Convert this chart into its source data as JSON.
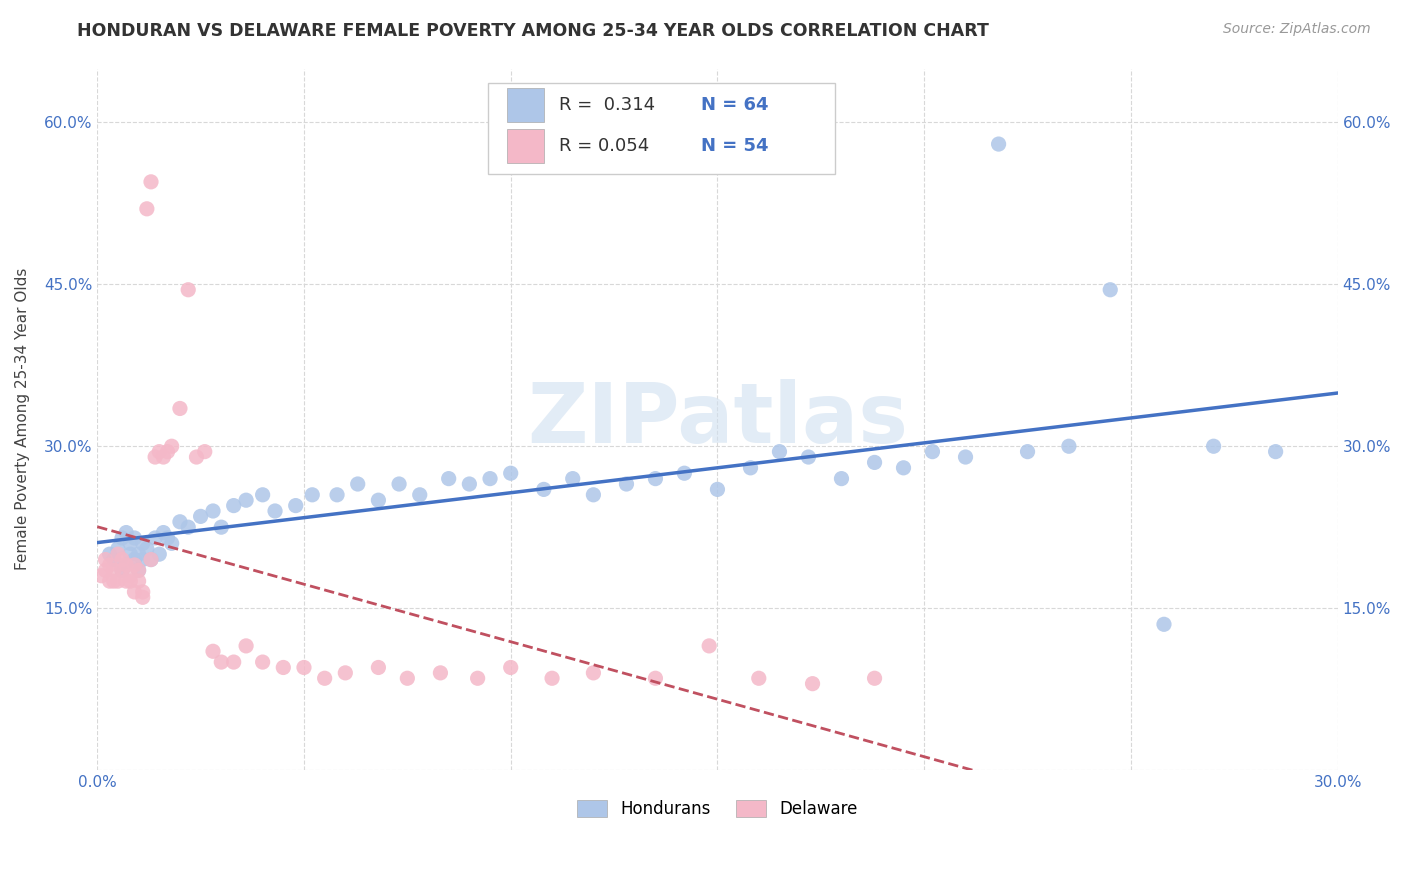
{
  "title": "HONDURAN VS DELAWARE FEMALE POVERTY AMONG 25-34 YEAR OLDS CORRELATION CHART",
  "source": "Source: ZipAtlas.com",
  "ylabel": "Female Poverty Among 25-34 Year Olds",
  "xlim": [
    0.0,
    0.3
  ],
  "ylim": [
    0.0,
    0.65
  ],
  "xticks": [
    0.0,
    0.05,
    0.1,
    0.15,
    0.2,
    0.25,
    0.3
  ],
  "yticks": [
    0.0,
    0.15,
    0.3,
    0.45,
    0.6
  ],
  "hondurans_color": "#aec6e8",
  "delaware_color": "#f4b8c8",
  "trendline_hondurans_color": "#4472c4",
  "trendline_delaware_color": "#c05060",
  "watermark": "ZIPatlas",
  "legend_R_hondurans": "0.314",
  "legend_N_hondurans": "64",
  "legend_R_delaware": "0.054",
  "legend_N_delaware": "54",
  "hondurans_x": [
    0.003,
    0.004,
    0.005,
    0.006,
    0.006,
    0.007,
    0.007,
    0.008,
    0.008,
    0.009,
    0.009,
    0.01,
    0.01,
    0.011,
    0.011,
    0.012,
    0.013,
    0.014,
    0.015,
    0.016,
    0.017,
    0.018,
    0.02,
    0.022,
    0.025,
    0.028,
    0.03,
    0.033,
    0.036,
    0.04,
    0.043,
    0.048,
    0.052,
    0.058,
    0.063,
    0.068,
    0.073,
    0.078,
    0.085,
    0.09,
    0.095,
    0.1,
    0.108,
    0.115,
    0.12,
    0.128,
    0.135,
    0.142,
    0.15,
    0.158,
    0.165,
    0.172,
    0.18,
    0.188,
    0.195,
    0.202,
    0.21,
    0.218,
    0.225,
    0.235,
    0.245,
    0.258,
    0.27,
    0.285
  ],
  "hondurans_y": [
    0.2,
    0.195,
    0.205,
    0.185,
    0.215,
    0.19,
    0.22,
    0.2,
    0.21,
    0.195,
    0.215,
    0.185,
    0.2,
    0.195,
    0.21,
    0.205,
    0.195,
    0.215,
    0.2,
    0.22,
    0.215,
    0.21,
    0.23,
    0.225,
    0.235,
    0.24,
    0.225,
    0.245,
    0.25,
    0.255,
    0.24,
    0.245,
    0.255,
    0.255,
    0.265,
    0.25,
    0.265,
    0.255,
    0.27,
    0.265,
    0.27,
    0.275,
    0.26,
    0.27,
    0.255,
    0.265,
    0.27,
    0.275,
    0.26,
    0.28,
    0.295,
    0.29,
    0.27,
    0.285,
    0.28,
    0.295,
    0.29,
    0.58,
    0.295,
    0.3,
    0.445,
    0.135,
    0.3,
    0.295
  ],
  "delaware_x": [
    0.001,
    0.002,
    0.002,
    0.003,
    0.003,
    0.004,
    0.004,
    0.005,
    0.005,
    0.006,
    0.006,
    0.007,
    0.007,
    0.008,
    0.008,
    0.009,
    0.009,
    0.01,
    0.01,
    0.011,
    0.011,
    0.012,
    0.013,
    0.013,
    0.014,
    0.015,
    0.016,
    0.017,
    0.018,
    0.02,
    0.022,
    0.024,
    0.026,
    0.028,
    0.03,
    0.033,
    0.036,
    0.04,
    0.045,
    0.05,
    0.055,
    0.06,
    0.068,
    0.075,
    0.083,
    0.092,
    0.1,
    0.11,
    0.12,
    0.135,
    0.148,
    0.16,
    0.173,
    0.188
  ],
  "delaware_y": [
    0.18,
    0.195,
    0.185,
    0.19,
    0.175,
    0.185,
    0.175,
    0.2,
    0.175,
    0.195,
    0.185,
    0.175,
    0.19,
    0.18,
    0.175,
    0.19,
    0.165,
    0.185,
    0.175,
    0.165,
    0.16,
    0.52,
    0.545,
    0.195,
    0.29,
    0.295,
    0.29,
    0.295,
    0.3,
    0.335,
    0.445,
    0.29,
    0.295,
    0.11,
    0.1,
    0.1,
    0.115,
    0.1,
    0.095,
    0.095,
    0.085,
    0.09,
    0.095,
    0.085,
    0.09,
    0.085,
    0.095,
    0.085,
    0.09,
    0.085,
    0.115,
    0.085,
    0.08,
    0.085
  ]
}
